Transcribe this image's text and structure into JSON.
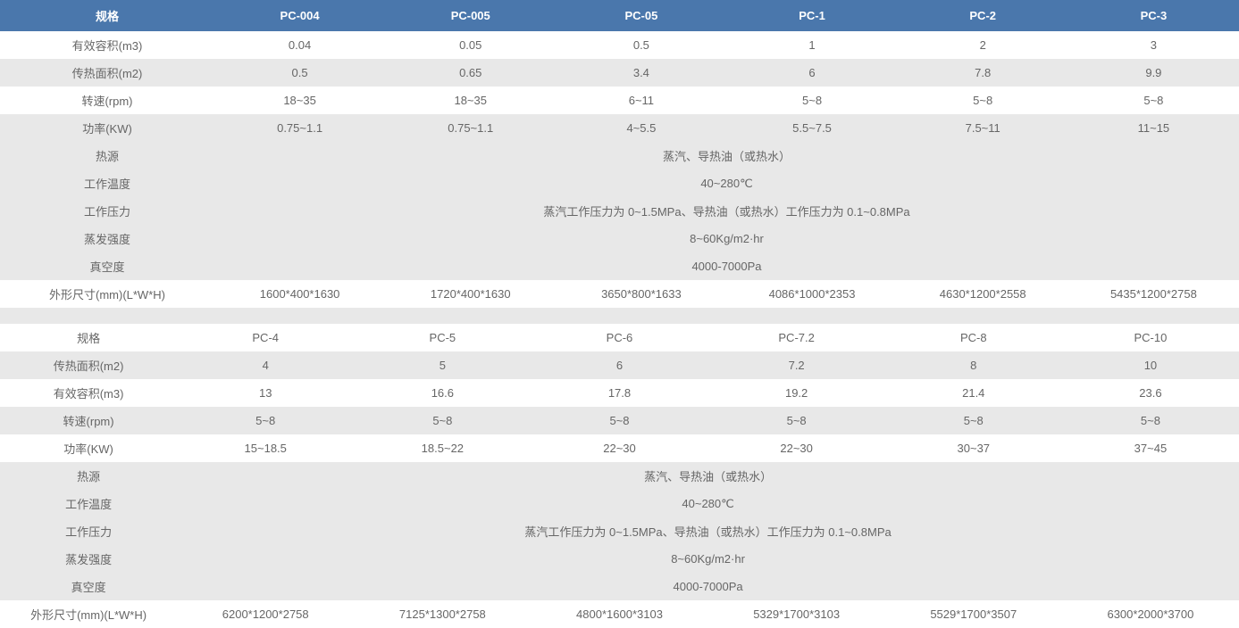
{
  "table1": {
    "headers": [
      "规格",
      "PC-004",
      "PC-005",
      "PC-05",
      "PC-1",
      "PC-2",
      "PC-3"
    ],
    "rows": [
      {
        "label": "有效容积(m3)",
        "values": [
          "0.04",
          "0.05",
          "0.5",
          "1",
          "2",
          "3"
        ],
        "span": false,
        "cls": "even"
      },
      {
        "label": "传热面积(m2)",
        "values": [
          "0.5",
          "0.65",
          "3.4",
          "6",
          "7.8",
          "9.9"
        ],
        "span": false,
        "cls": "odd"
      },
      {
        "label": "转速(rpm)",
        "values": [
          "18~35",
          "18~35",
          "6~11",
          "5~8",
          "5~8",
          "5~8"
        ],
        "span": false,
        "cls": "even"
      },
      {
        "label": "功率(KW)",
        "values": [
          "0.75~1.1",
          "0.75~1.1",
          "4~5.5",
          "5.5~7.5",
          "7.5~11",
          "11~15"
        ],
        "span": false,
        "cls": "odd"
      },
      {
        "label": "热源",
        "value": "蒸汽、导热油（或热水）",
        "span": true,
        "cls": "odd"
      },
      {
        "label": "工作温度",
        "value": "40~280℃",
        "span": true,
        "cls": "odd"
      },
      {
        "label": "工作压力",
        "value": "蒸汽工作压力为 0~1.5MPa、导热油（或热水）工作压力为 0.1~0.8MPa",
        "span": true,
        "cls": "odd"
      },
      {
        "label": "蒸发强度",
        "value": "8~60Kg/m2·hr",
        "span": true,
        "cls": "odd"
      },
      {
        "label": "真空度",
        "value": "4000-7000Pa",
        "span": true,
        "cls": "odd"
      },
      {
        "label": "外形尺寸(mm)(L*W*H)",
        "values": [
          "1600*400*1630",
          "1720*400*1630",
          "3650*800*1633",
          "4086*1000*2353",
          "4630*1200*2558",
          "5435*1200*2758"
        ],
        "span": false,
        "cls": "even"
      }
    ]
  },
  "table2": {
    "headers": [
      "规格",
      "PC-4",
      "PC-5",
      "PC-6",
      "PC-7.2",
      "PC-8",
      "PC-10"
    ],
    "rows": [
      {
        "label": "传热面积(m2)",
        "values": [
          "4",
          "5",
          "6",
          "7.2",
          "8",
          "10"
        ],
        "span": false,
        "cls": "odd"
      },
      {
        "label": "有效容积(m3)",
        "values": [
          "13",
          "16.6",
          "17.8",
          "19.2",
          "21.4",
          "23.6"
        ],
        "span": false,
        "cls": "even"
      },
      {
        "label": "转速(rpm)",
        "values": [
          "5~8",
          "5~8",
          "5~8",
          "5~8",
          "5~8",
          "5~8"
        ],
        "span": false,
        "cls": "odd"
      },
      {
        "label": "功率(KW)",
        "values": [
          "15~18.5",
          "18.5~22",
          "22~30",
          "22~30",
          "30~37",
          "37~45"
        ],
        "span": false,
        "cls": "even"
      },
      {
        "label": "热源",
        "value": "蒸汽、导热油（或热水）",
        "span": true,
        "cls": "odd"
      },
      {
        "label": "工作温度",
        "value": "40~280℃",
        "span": true,
        "cls": "odd"
      },
      {
        "label": "工作压力",
        "value": "蒸汽工作压力为 0~1.5MPa、导热油（或热水）工作压力为 0.1~0.8MPa",
        "span": true,
        "cls": "odd"
      },
      {
        "label": "蒸发强度",
        "value": "8~60Kg/m2·hr",
        "span": true,
        "cls": "odd"
      },
      {
        "label": "真空度",
        "value": "4000-7000Pa",
        "span": true,
        "cls": "odd"
      },
      {
        "label": "外形尺寸(mm)(L*W*H)",
        "values": [
          "6200*1200*2758",
          "7125*1300*2758",
          "4800*1600*3103",
          "5329*1700*3103",
          "5529*1700*3507",
          "6300*2000*3700"
        ],
        "span": false,
        "cls": "even"
      }
    ]
  },
  "styles": {
    "header_bg": "#4a77ac",
    "header_text_color": "#ffffff",
    "odd_row_bg": "#e8e8e8",
    "even_row_bg": "#ffffff",
    "text_color": "#666666",
    "font_size": 13
  }
}
